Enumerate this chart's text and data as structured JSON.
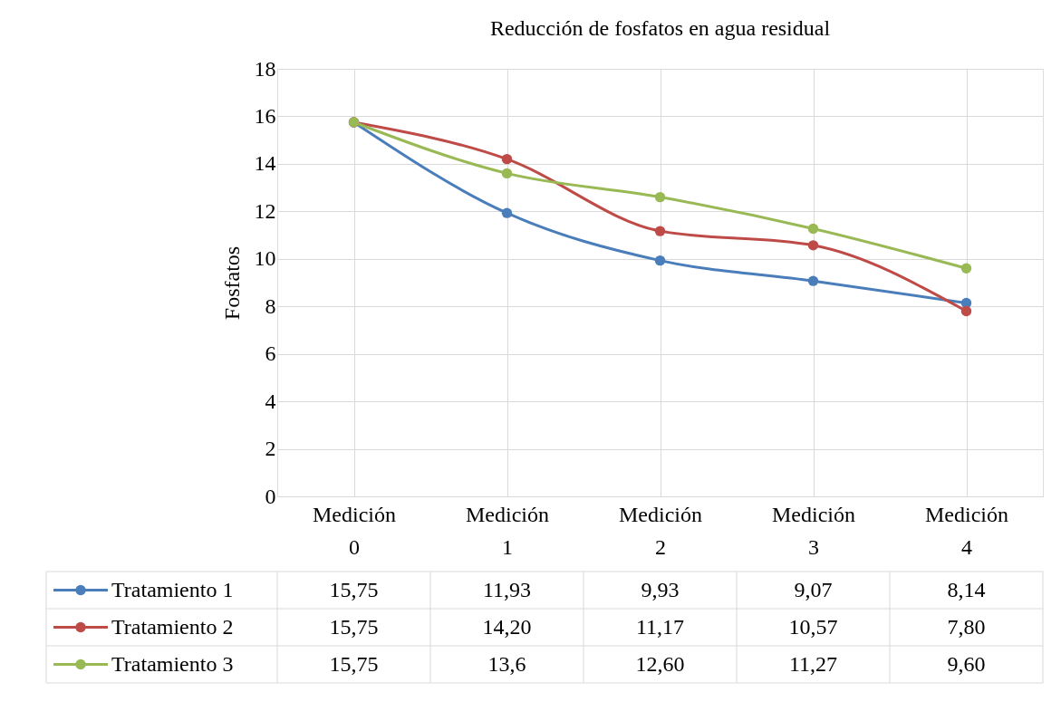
{
  "chart_data": {
    "type": "line",
    "title": "Reducción de fosfatos en agua residual",
    "ylabel": "Fosfatos",
    "categories": [
      "Medición 0",
      "Medición 1",
      "Medición 2",
      "Medición 3",
      "Medición 4"
    ],
    "series": [
      {
        "name": "Tratamiento 1",
        "color": "#4a7ebb",
        "values": [
          15.75,
          11.93,
          9.93,
          9.07,
          8.14
        ],
        "value_labels": [
          "15,75",
          "11,93",
          "9,93",
          "9,07",
          "8,14"
        ]
      },
      {
        "name": "Tratamiento 2",
        "color": "#be4b48",
        "values": [
          15.75,
          14.2,
          11.17,
          10.57,
          7.8
        ],
        "value_labels": [
          "15,75",
          "14,20",
          "11,17",
          "10,57",
          "7,80"
        ]
      },
      {
        "name": "Tratamiento 3",
        "color": "#98b954",
        "values": [
          15.75,
          13.6,
          12.6,
          11.27,
          9.6
        ],
        "value_labels": [
          "15,75",
          "13,6",
          "12,60",
          "11,27",
          "9,60"
        ]
      }
    ],
    "ylim": [
      0,
      18
    ],
    "yticks": [
      0,
      2,
      4,
      6,
      8,
      10,
      12,
      14,
      16,
      18
    ],
    "grid": true,
    "marker": "circle",
    "line_style": "solid",
    "legend": "bottom"
  }
}
